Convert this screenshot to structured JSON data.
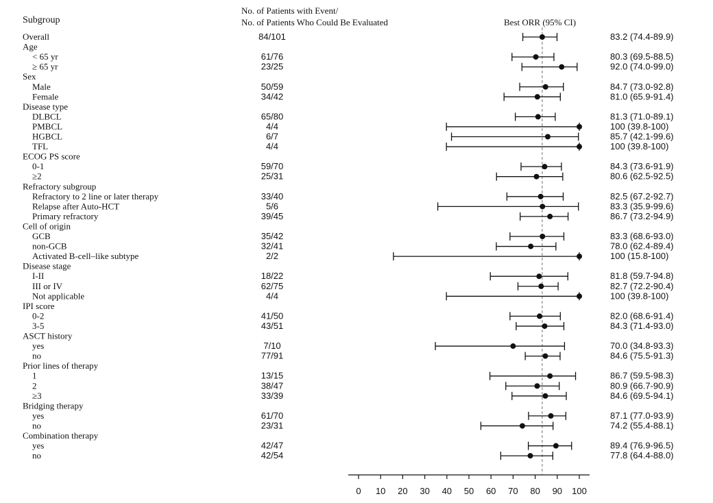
{
  "header": {
    "subgroup": "Subgroup",
    "events_line1": "No. of Patients with Event/",
    "events_line2": "No. of Patients Who Could Be Evaluated",
    "orr": "Best ORR (95% CI)"
  },
  "chart_data": {
    "type": "forest",
    "xlim": [
      0,
      100
    ],
    "xticks": [
      "0",
      "10",
      "20",
      "30",
      "40",
      "50",
      "60",
      "70",
      "80",
      "90",
      "100"
    ],
    "reference_line": 83.2,
    "rows": [
      {
        "label": "Overall",
        "indent": 0,
        "n": "84/101",
        "est": 83.2,
        "lo": 74.4,
        "hi": 89.9,
        "ci_text": "83.2 (74.4-89.9)"
      },
      {
        "label": "Age",
        "indent": 0,
        "header": true
      },
      {
        "label": "< 65 yr",
        "indent": 1,
        "n": "61/76",
        "est": 80.3,
        "lo": 69.5,
        "hi": 88.5,
        "ci_text": "80.3 (69.5-88.5)"
      },
      {
        "label": "≥ 65 yr",
        "indent": 1,
        "n": "23/25",
        "est": 92.0,
        "lo": 74.0,
        "hi": 99.0,
        "ci_text": "92.0 (74.0-99.0)"
      },
      {
        "label": "Sex",
        "indent": 0,
        "header": true
      },
      {
        "label": "Male",
        "indent": 1,
        "n": "50/59",
        "est": 84.7,
        "lo": 73.0,
        "hi": 92.8,
        "ci_text": "84.7 (73.0-92.8)"
      },
      {
        "label": "Female",
        "indent": 1,
        "n": "34/42",
        "est": 81.0,
        "lo": 65.9,
        "hi": 91.4,
        "ci_text": "81.0 (65.9-91.4)"
      },
      {
        "label": "Disease type",
        "indent": 0,
        "header": true
      },
      {
        "label": "DLBCL",
        "indent": 1,
        "n": "65/80",
        "est": 81.3,
        "lo": 71.0,
        "hi": 89.1,
        "ci_text": "81.3 (71.0-89.1)"
      },
      {
        "label": "PMBCL",
        "indent": 1,
        "n": "4/4",
        "est": 100,
        "lo": 39.8,
        "hi": 100,
        "ci_text": "100 (39.8-100)"
      },
      {
        "label": "HGBCL",
        "indent": 1,
        "n": "6/7",
        "est": 85.7,
        "lo": 42.1,
        "hi": 99.6,
        "ci_text": "85.7 (42.1-99.6)"
      },
      {
        "label": "TFL",
        "indent": 1,
        "n": "4/4",
        "est": 100,
        "lo": 39.8,
        "hi": 100,
        "ci_text": "100 (39.8-100)"
      },
      {
        "label": "ECOG PS score",
        "indent": 0,
        "header": true
      },
      {
        "label": "0-1",
        "indent": 1,
        "n": "59/70",
        "est": 84.3,
        "lo": 73.6,
        "hi": 91.9,
        "ci_text": "84.3 (73.6-91.9)"
      },
      {
        "label": "≥2",
        "indent": 1,
        "n": "25/31",
        "est": 80.6,
        "lo": 62.5,
        "hi": 92.5,
        "ci_text": "80.6 (62.5-92.5)"
      },
      {
        "label": "Refractory subgroup",
        "indent": 0,
        "header": true
      },
      {
        "label": "Refractory to 2 line or later therapy",
        "indent": 1,
        "n": "33/40",
        "est": 82.5,
        "lo": 67.2,
        "hi": 92.7,
        "ci_text": "82.5 (67.2-92.7)"
      },
      {
        "label": "Relapse after Auto-HCT",
        "indent": 1,
        "n": "5/6",
        "est": 83.3,
        "lo": 35.9,
        "hi": 99.6,
        "ci_text": "83.3 (35.9-99.6)"
      },
      {
        "label": "Primary refractory",
        "indent": 1,
        "n": "39/45",
        "est": 86.7,
        "lo": 73.2,
        "hi": 94.9,
        "ci_text": "86.7 (73.2-94.9)"
      },
      {
        "label": "Cell of origin",
        "indent": 0,
        "header": true
      },
      {
        "label": "GCB",
        "indent": 1,
        "n": "35/42",
        "est": 83.3,
        "lo": 68.6,
        "hi": 93.0,
        "ci_text": "83.3 (68.6-93.0)"
      },
      {
        "label": "non-GCB",
        "indent": 1,
        "n": "32/41",
        "est": 78.0,
        "lo": 62.4,
        "hi": 89.4,
        "ci_text": "78.0 (62.4-89.4)"
      },
      {
        "label": "Activated B-cell–like subtype",
        "indent": 1,
        "n": "2/2",
        "est": 100,
        "lo": 15.8,
        "hi": 100,
        "ci_text": "100 (15.8-100)"
      },
      {
        "label": "Disease stage",
        "indent": 0,
        "header": true
      },
      {
        "label": "I-II",
        "indent": 1,
        "n": "18/22",
        "est": 81.8,
        "lo": 59.7,
        "hi": 94.8,
        "ci_text": "81.8 (59.7-94.8)"
      },
      {
        "label": "III or IV",
        "indent": 1,
        "n": "62/75",
        "est": 82.7,
        "lo": 72.2,
        "hi": 90.4,
        "ci_text": "82.7 (72.2-90.4)"
      },
      {
        "label": "Not applicable",
        "indent": 1,
        "n": "4/4",
        "est": 100,
        "lo": 39.8,
        "hi": 100,
        "ci_text": "100 (39.8-100)"
      },
      {
        "label": "IPI score",
        "indent": 0,
        "header": true
      },
      {
        "label": "0-2",
        "indent": 1,
        "n": "41/50",
        "est": 82.0,
        "lo": 68.6,
        "hi": 91.4,
        "ci_text": "82.0 (68.6-91.4)"
      },
      {
        "label": "3-5",
        "indent": 1,
        "n": "43/51",
        "est": 84.3,
        "lo": 71.4,
        "hi": 93.0,
        "ci_text": "84.3 (71.4-93.0)"
      },
      {
        "label": "ASCT history",
        "indent": 0,
        "header": true
      },
      {
        "label": "yes",
        "indent": 1,
        "n": "7/10",
        "est": 70.0,
        "lo": 34.8,
        "hi": 93.3,
        "ci_text": "70.0 (34.8-93.3)"
      },
      {
        "label": "no",
        "indent": 1,
        "n": "77/91",
        "est": 84.6,
        "lo": 75.5,
        "hi": 91.3,
        "ci_text": "84.6 (75.5-91.3)"
      },
      {
        "label": "Prior lines of therapy",
        "indent": 0,
        "header": true
      },
      {
        "label": "1",
        "indent": 1,
        "n": "13/15",
        "est": 86.7,
        "lo": 59.5,
        "hi": 98.3,
        "ci_text": "86.7 (59.5-98.3)"
      },
      {
        "label": "2",
        "indent": 1,
        "n": "38/47",
        "est": 80.9,
        "lo": 66.7,
        "hi": 90.9,
        "ci_text": "80.9 (66.7-90.9)"
      },
      {
        "label": "≥3",
        "indent": 1,
        "n": "33/39",
        "est": 84.6,
        "lo": 69.5,
        "hi": 94.1,
        "ci_text": "84.6 (69.5-94.1)"
      },
      {
        "label": "Bridging therapy",
        "indent": 0,
        "header": true
      },
      {
        "label": "yes",
        "indent": 1,
        "n": "61/70",
        "est": 87.1,
        "lo": 77.0,
        "hi": 93.9,
        "ci_text": "87.1 (77.0-93.9)"
      },
      {
        "label": "no",
        "indent": 1,
        "n": "23/31",
        "est": 74.2,
        "lo": 55.4,
        "hi": 88.1,
        "ci_text": "74.2 (55.4-88.1)"
      },
      {
        "label": "Combination therapy",
        "indent": 0,
        "header": true
      },
      {
        "label": "yes",
        "indent": 1,
        "n": "42/47",
        "est": 89.4,
        "lo": 76.9,
        "hi": 96.5,
        "ci_text": "89.4 (76.9-96.5)"
      },
      {
        "label": "no",
        "indent": 1,
        "n": "42/54",
        "est": 77.8,
        "lo": 64.4,
        "hi": 88.0,
        "ci_text": "77.8 (64.4-88.0)"
      }
    ]
  }
}
